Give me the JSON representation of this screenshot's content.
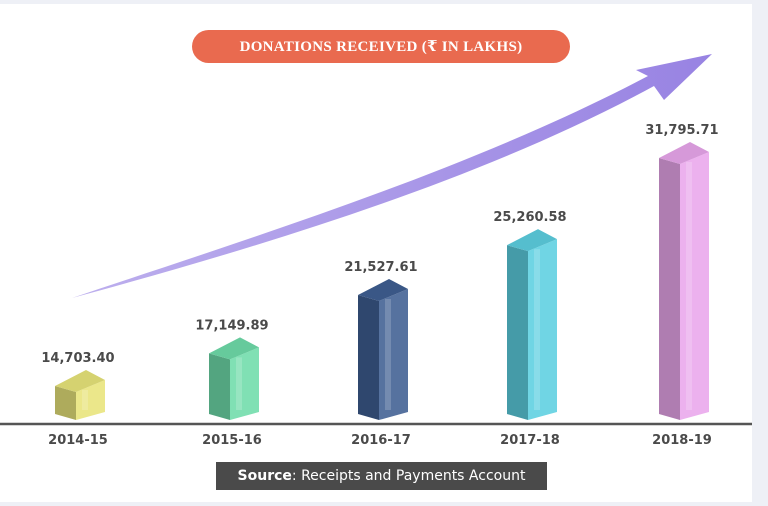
{
  "chart_data": {
    "type": "bar",
    "title": "DONATIONS RECEIVED (₹ IN LAKHS)",
    "categories": [
      "2014-15",
      "2015-16",
      "2016-17",
      "2017-18",
      "2018-19"
    ],
    "values": [
      14703.4,
      17149.89,
      21527.61,
      25260.58,
      31795.71
    ],
    "value_labels": [
      "14,703.40",
      "17,149.89",
      "21,527.61",
      "25,260.58",
      "31,795.71"
    ],
    "bar_colors": [
      "#e8e47a",
      "#6fdcaa",
      "#3f5f92",
      "#5ccfe0",
      "#e9a6ec"
    ],
    "trend_arrow": true,
    "grid": false,
    "legend": "none"
  },
  "source": {
    "label": "Source",
    "text": ": Receipts and Payments Account"
  }
}
